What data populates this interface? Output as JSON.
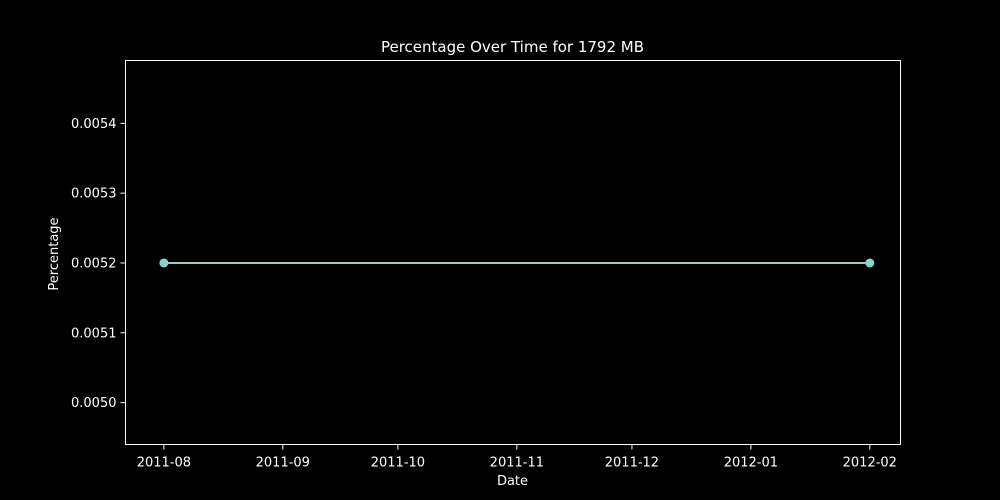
{
  "chart_data": {
    "type": "line",
    "title": "Percentage Over Time for 1792 MB",
    "xlabel": "Date",
    "ylabel": "Percentage",
    "x_ticks": [
      "2011-08",
      "2011-09",
      "2011-10",
      "2011-11",
      "2011-12",
      "2012-01",
      "2012-02"
    ],
    "xlim": [
      "2011-07-22",
      "2012-02-09"
    ],
    "y_ticks": [
      "0.0050",
      "0.0051",
      "0.0052",
      "0.0053",
      "0.0054"
    ],
    "ylim": [
      0.00494,
      0.00549
    ],
    "grid": false,
    "series": [
      {
        "x": [
          "2011-08-01",
          "2012-02-01"
        ],
        "values": [
          0.0052,
          0.0052
        ],
        "color": "#8dd3c7"
      }
    ]
  },
  "colors": {
    "background": "#000000",
    "axes": "#ffffff",
    "text": "#ffffff"
  }
}
